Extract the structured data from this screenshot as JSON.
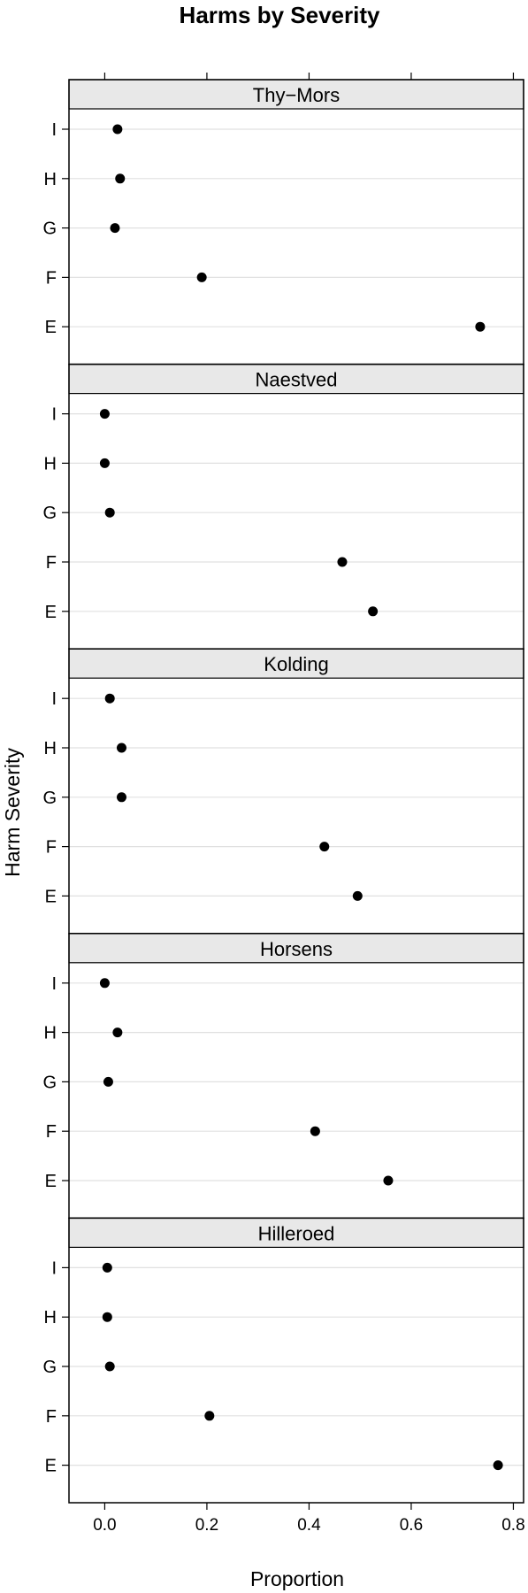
{
  "chart_data": {
    "type": "scatter",
    "title": "Harms by Severity",
    "xlabel": "Proportion",
    "ylabel": "Harm Severity",
    "xlim": [
      -0.07,
      0.82
    ],
    "x_ticks": [
      "0.0",
      "0.2",
      "0.4",
      "0.6",
      "0.8"
    ],
    "x_tick_values": [
      0.0,
      0.2,
      0.4,
      0.6,
      0.8
    ],
    "categories": [
      "I",
      "H",
      "G",
      "F",
      "E"
    ],
    "grid": true,
    "panels": [
      {
        "name": "Thy−Mors",
        "values": [
          0.025,
          0.03,
          0.02,
          0.19,
          0.735
        ]
      },
      {
        "name": "Naestved",
        "values": [
          0.0,
          0.0,
          0.01,
          0.465,
          0.525
        ]
      },
      {
        "name": "Kolding",
        "values": [
          0.01,
          0.033,
          0.033,
          0.43,
          0.495
        ]
      },
      {
        "name": "Horsens",
        "values": [
          0.0,
          0.025,
          0.007,
          0.412,
          0.555
        ]
      },
      {
        "name": "Hilleroed",
        "values": [
          0.005,
          0.005,
          0.01,
          0.205,
          0.77
        ]
      }
    ]
  },
  "colors": {
    "strip_bg": "#e8e8e8",
    "grid": "#e0e0e0",
    "point": "#000000",
    "frame": "#000000"
  }
}
